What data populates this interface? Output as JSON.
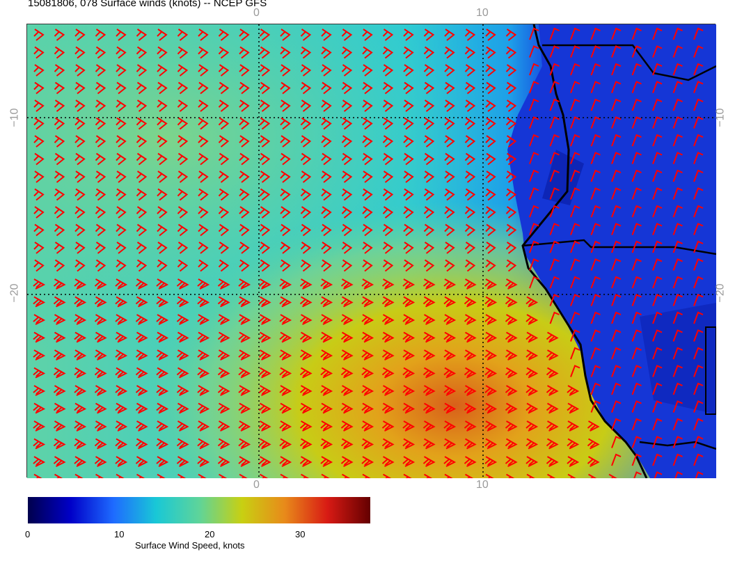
{
  "title": "15081806, 078 Surface winds (knots) -- NCEP GFS",
  "map": {
    "projection": "lat-lon",
    "lon_ticks": [
      "0",
      "10"
    ],
    "lat_ticks": [
      "−10",
      "−20"
    ],
    "barb_color": "#ff0000",
    "coast_color": "#000000"
  },
  "colorbar": {
    "label": "Surface Wind Speed, knots",
    "ticks": [
      "0",
      "10",
      "20",
      "30"
    ],
    "range": [
      0,
      38
    ],
    "colors": [
      "#00004d",
      "#0000c8",
      "#1e6bff",
      "#19c8d6",
      "#5ed49a",
      "#c8d012",
      "#e88a1a",
      "#d81a14",
      "#640000"
    ]
  }
}
